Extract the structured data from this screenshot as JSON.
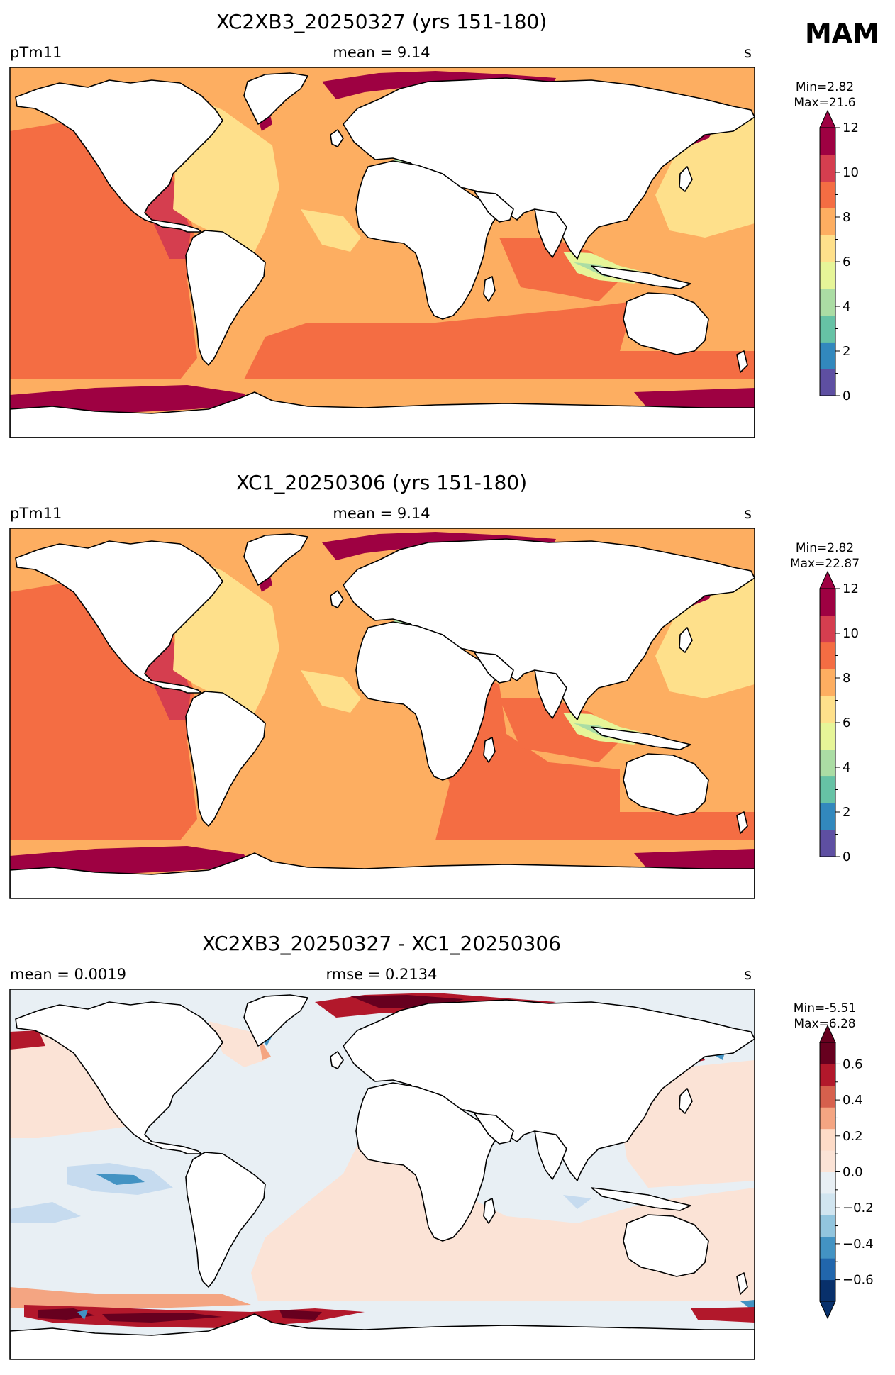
{
  "season": "MAM",
  "panels": [
    {
      "id": "p1",
      "title": "XC2XB3_20250327 (yrs 151-180)",
      "left": "pTm11",
      "center": "mean = 9.14",
      "right": "s",
      "cb_min": "Min=2.82",
      "cb_max": "Max=21.6",
      "cb_ticks": [
        "0",
        "2",
        "4",
        "6",
        "8",
        "10",
        "12"
      ],
      "cb_colors": [
        "#5e4fa2",
        "#3288bd",
        "#66c2a5",
        "#abdda4",
        "#e6f598",
        "#fee08b",
        "#fdae61",
        "#f46d43",
        "#d53e4f",
        "#9e0142"
      ],
      "cb_extend": "max"
    },
    {
      "id": "p2",
      "title": "XC1_20250306 (yrs 151-180)",
      "left": "pTm11",
      "center": "mean = 9.14",
      "right": "s",
      "cb_min": "Min=2.82",
      "cb_max": "Max=22.87",
      "cb_ticks": [
        "0",
        "2",
        "4",
        "6",
        "8",
        "10",
        "12"
      ],
      "cb_colors": [
        "#5e4fa2",
        "#3288bd",
        "#66c2a5",
        "#abdda4",
        "#e6f598",
        "#fee08b",
        "#fdae61",
        "#f46d43",
        "#d53e4f",
        "#9e0142"
      ],
      "cb_extend": "max"
    },
    {
      "id": "p3",
      "title": "XC2XB3_20250327 - XC1_20250306",
      "left": "mean = 0.0019",
      "center": "rmse = 0.2134",
      "right": "s",
      "cb_min": "Min=-5.51",
      "cb_max": "Max=6.28",
      "cb_ticks": [
        "−0.6",
        "−0.4",
        "−0.2",
        "0.0",
        "0.2",
        "0.4",
        "0.6"
      ],
      "cb_colors": [
        "#08306b",
        "#2166ac",
        "#4393c3",
        "#92c5de",
        "#d1e5f0",
        "#e8eff4",
        "#fbe3d6",
        "#fddbc7",
        "#f4a582",
        "#d6604d",
        "#b2182b",
        "#67001f"
      ],
      "cb_extend": "both"
    }
  ],
  "palettes": {
    "wave_period": {
      "deep": "#9e0142",
      "dark_red": "#d53e4f",
      "red": "#f46d43",
      "orange": "#fdae61",
      "yellow": "#fee08b",
      "pale": "#ffffbf",
      "lime": "#e6f598",
      "green": "#abdda4"
    },
    "difference": {
      "neg_light": "#e8eff4",
      "neg_mid": "#c6dbef",
      "neg_strong": "#4393c3",
      "pos_light": "#fbe3d6",
      "pos_mid": "#f4a582",
      "pos_strong": "#b2182b",
      "pos_deep": "#67001f"
    }
  }
}
